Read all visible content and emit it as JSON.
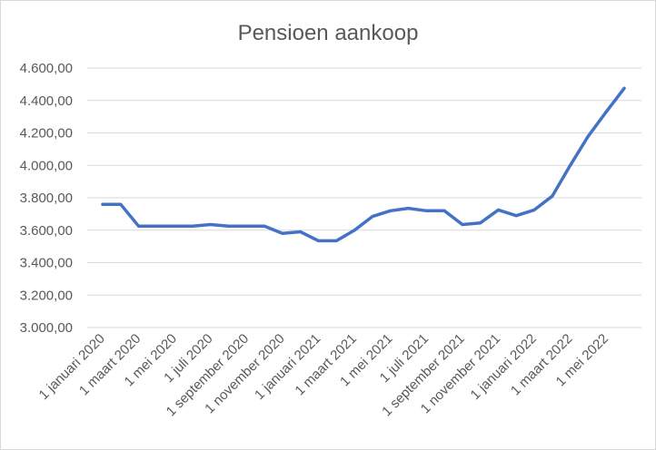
{
  "chart_data": {
    "type": "line",
    "title": "Pensioen aankoop",
    "xlabel": "",
    "ylabel": "",
    "ylim": [
      3000,
      4600
    ],
    "y_ticks": [
      3000,
      3200,
      3400,
      3600,
      3800,
      4000,
      4200,
      4400,
      4600
    ],
    "y_tick_labels": [
      "3.000,00",
      "3.200,00",
      "3.400,00",
      "3.600,00",
      "3.800,00",
      "4.000,00",
      "4.200,00",
      "4.400,00",
      "4.600,00"
    ],
    "x_tick_labels": [
      "1 januari 2020",
      "1 maart 2020",
      "1 mei 2020",
      "1 juli 2020",
      "1 september 2020",
      "1 november 2020",
      "1 januari 2021",
      "1 maart 2021",
      "1 mei 2021",
      "1 juli 2021",
      "1 september 2021",
      "1 november 2021",
      "1 januari 2022",
      "1 maart 2022",
      "1 mei 2022"
    ],
    "grid": true,
    "legend": "none",
    "series": [
      {
        "color": "#4472c4",
        "x": [
          "2020-01-01",
          "2020-02-01",
          "2020-03-01",
          "2020-04-01",
          "2020-05-01",
          "2020-06-01",
          "2020-07-01",
          "2020-08-01",
          "2020-09-01",
          "2020-10-01",
          "2020-11-01",
          "2020-12-01",
          "2021-01-01",
          "2021-02-01",
          "2021-03-01",
          "2021-04-01",
          "2021-05-01",
          "2021-06-01",
          "2021-07-01",
          "2021-08-01",
          "2021-09-01",
          "2021-10-01",
          "2021-11-01",
          "2021-12-01",
          "2022-01-01",
          "2022-02-01",
          "2022-03-01",
          "2022-04-01",
          "2022-05-01",
          "2022-06-01"
        ],
        "values": [
          3760,
          3760,
          3625,
          3625,
          3625,
          3625,
          3635,
          3625,
          3625,
          3625,
          3580,
          3590,
          3535,
          3535,
          3600,
          3685,
          3720,
          3735,
          3720,
          3720,
          3635,
          3645,
          3725,
          3690,
          3725,
          3810,
          4000,
          4180,
          4330,
          4475
        ]
      }
    ]
  }
}
